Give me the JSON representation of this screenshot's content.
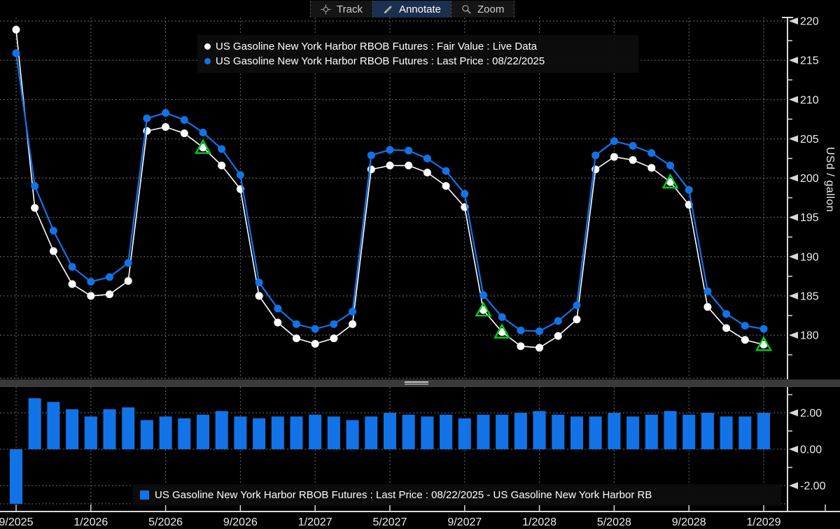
{
  "toolbar": {
    "track_label": "Track",
    "annotate_label": "Annotate",
    "zoom_label": "Zoom"
  },
  "main_legend": {
    "items": [
      {
        "marker": "dot",
        "color": "#ffffff",
        "label": "US Gasoline New York Harbor RBOB Futures : Fair Value : Live Data"
      },
      {
        "marker": "dot",
        "color": "#1273e8",
        "label": "US Gasoline New York Harbor RBOB Futures : Last Price : 08/22/2025"
      }
    ]
  },
  "bottom_legend": {
    "swatch_color": "#1273e8",
    "label": "US Gasoline New York Harbor RBOB Futures : Last Price : 08/22/2025 - US Gasoline New York Harbor RB"
  },
  "colors": {
    "background": "#000000",
    "grid": "#6b6b6b",
    "axis": "#d9d9d9",
    "tick_text": "#ececec",
    "white_series": "#ffffff",
    "blue_series": "#1273e8",
    "annotation_green": "#00cc22",
    "toolbar_selected_bg": "#1b2f4e"
  },
  "chart_data": [
    {
      "type": "line",
      "ylabel": "USd / gallon",
      "x": [
        "9/2025",
        "10/2025",
        "11/2025",
        "12/2025",
        "1/2026",
        "2/2026",
        "3/2026",
        "4/2026",
        "5/2026",
        "6/2026",
        "7/2026",
        "8/2026",
        "9/2026",
        "10/2026",
        "11/2026",
        "12/2026",
        "1/2027",
        "2/2027",
        "3/2027",
        "4/2027",
        "5/2027",
        "6/2027",
        "7/2027",
        "8/2027",
        "9/2027",
        "10/2027",
        "11/2027",
        "12/2027",
        "1/2028",
        "2/2028",
        "3/2028",
        "4/2028",
        "5/2028",
        "6/2028",
        "7/2028",
        "8/2028",
        "9/2028",
        "10/2028",
        "11/2028",
        "12/2028",
        "1/2029"
      ],
      "x_tick_step": 4,
      "ylim": [
        174.5,
        220.5
      ],
      "yticks": [
        220,
        215,
        210,
        205,
        200,
        195,
        190,
        185,
        180
      ],
      "grid": true,
      "legend_position": "top-center",
      "series": [
        {
          "name": "US Gasoline New York Harbor RBOB Futures : Fair Value : Live Data",
          "color": "#ffffff",
          "values": [
            218.9,
            196.2,
            190.7,
            186.5,
            185.0,
            185.2,
            186.9,
            206.0,
            206.5,
            205.7,
            203.9,
            201.6,
            198.6,
            185.0,
            181.6,
            179.6,
            178.9,
            179.6,
            181.4,
            201.1,
            201.6,
            201.6,
            200.7,
            199.0,
            196.3,
            183.2,
            180.4,
            178.6,
            178.4,
            179.9,
            182.0,
            201.1,
            202.7,
            202.3,
            201.3,
            199.5,
            196.6,
            183.6,
            180.9,
            179.4,
            178.8
          ]
        },
        {
          "name": "US Gasoline New York Harbor RBOB Futures : Last Price : 08/22/2025",
          "color": "#1273e8",
          "values": [
            215.9,
            199.0,
            193.3,
            188.7,
            186.8,
            187.4,
            189.2,
            207.6,
            208.3,
            207.4,
            205.8,
            203.7,
            200.4,
            186.7,
            183.4,
            181.4,
            180.8,
            181.4,
            183.0,
            202.9,
            203.6,
            203.5,
            202.5,
            200.9,
            198.0,
            185.1,
            182.3,
            180.6,
            180.5,
            181.8,
            183.8,
            202.9,
            204.7,
            204.1,
            203.2,
            201.6,
            198.5,
            185.6,
            182.7,
            181.2,
            180.8
          ]
        }
      ],
      "annotations": {
        "type": "triangle-up",
        "series": 0,
        "indices": [
          10,
          25,
          26,
          35,
          40
        ],
        "color": "#00cc22"
      }
    },
    {
      "type": "bar",
      "name": "US Gasoline New York Harbor RBOB Futures : Last Price : 08/22/2025 - US Gasoline New York Harbor RB",
      "x_shared_with_chart": 0,
      "color": "#1273e8",
      "ylim": [
        -3.4,
        3.4
      ],
      "yticks": [
        2,
        0,
        -2
      ],
      "ytick_labels": [
        "2.00",
        "0.00",
        "-2.00"
      ],
      "values": [
        -3.0,
        2.8,
        2.6,
        2.2,
        1.8,
        2.2,
        2.3,
        1.6,
        1.8,
        1.7,
        1.9,
        2.1,
        1.8,
        1.7,
        1.8,
        1.8,
        1.9,
        1.8,
        1.6,
        1.8,
        2.0,
        1.9,
        1.8,
        1.9,
        1.7,
        1.9,
        1.9,
        2.0,
        2.1,
        1.9,
        1.8,
        1.8,
        2.0,
        1.8,
        1.9,
        2.1,
        1.9,
        2.0,
        1.8,
        1.8,
        2.0
      ]
    }
  ]
}
